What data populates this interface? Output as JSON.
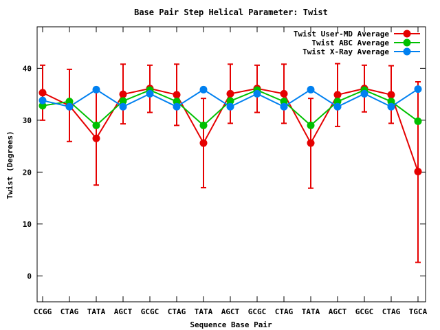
{
  "chart_data": {
    "type": "line",
    "title": "Base Pair Step Helical Parameter: Twist",
    "xlabel": "Sequence Base Pair",
    "ylabel": "Twist (Degrees)",
    "categories": [
      "CCGG",
      "CTAG",
      "TATA",
      "AGCT",
      "GCGC",
      "CTAG",
      "TATA",
      "AGCT",
      "GCGC",
      "CTAG",
      "TATA",
      "AGCT",
      "GCGC",
      "CTAG",
      "TGCA"
    ],
    "ylim": [
      -5,
      48
    ],
    "yticks": [
      0,
      10,
      20,
      30,
      40
    ],
    "grid": false,
    "legend_position": "top-right",
    "series": [
      {
        "name": "Twist User-MD Average",
        "color": "#e50000",
        "values": [
          35.3,
          32.8,
          26.5,
          35.0,
          36.1,
          34.9,
          25.6,
          35.1,
          36.1,
          35.1,
          25.6,
          34.9,
          36.1,
          34.9,
          20.1
        ],
        "error_low": [
          30.0,
          25.9,
          17.5,
          29.3,
          31.5,
          29.0,
          17.0,
          29.4,
          31.5,
          29.4,
          16.9,
          28.8,
          31.6,
          29.4,
          2.6
        ],
        "error_high": [
          40.6,
          39.8,
          35.5,
          40.8,
          40.6,
          40.8,
          34.2,
          40.8,
          40.6,
          40.8,
          34.2,
          40.9,
          40.6,
          40.5,
          37.4
        ]
      },
      {
        "name": "Twist ABC Average",
        "color": "#00c000",
        "values": [
          32.8,
          33.6,
          29.0,
          33.7,
          35.8,
          33.6,
          29.0,
          33.7,
          35.8,
          33.6,
          29.0,
          33.6,
          35.8,
          33.6,
          29.8
        ]
      },
      {
        "name": "Twist X-Ray Average",
        "color": "#0080f0",
        "values": [
          33.8,
          32.6,
          35.9,
          32.6,
          35.1,
          32.6,
          35.9,
          32.6,
          35.1,
          32.6,
          35.9,
          32.6,
          35.1,
          32.6,
          36.0
        ]
      }
    ]
  }
}
